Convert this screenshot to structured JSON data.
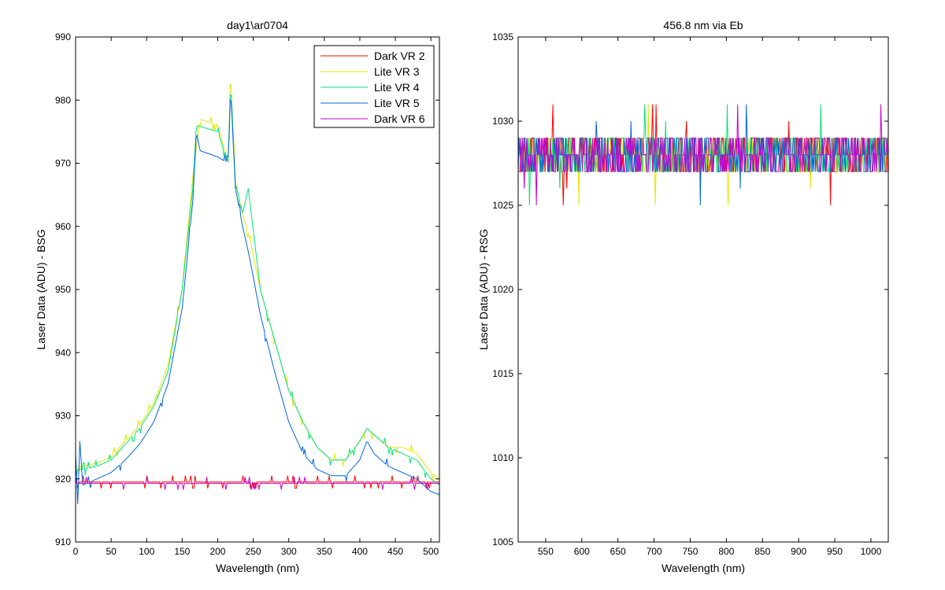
{
  "colors": {
    "background": "#ffffff",
    "axes": "#000000",
    "dark_vr_2": "#ff0000",
    "lite_vr_3": "#e6e600",
    "lite_vr_4": "#00e673",
    "lite_vr_5": "#0066dd",
    "dark_vr_6": "#cc00cc"
  },
  "chart_data": [
    {
      "type": "line",
      "title": "day1\\ar0704",
      "xlabel": "Wavelength (nm)",
      "ylabel": "Laser Data (ADU) - BSG",
      "xlim": [
        0,
        512
      ],
      "ylim": [
        910,
        990
      ],
      "xticks": [
        0,
        50,
        100,
        150,
        200,
        250,
        300,
        350,
        400,
        450,
        500
      ],
      "yticks": [
        910,
        920,
        930,
        940,
        950,
        960,
        970,
        980,
        990
      ],
      "grid": false,
      "legend_position": "top-right",
      "legend": [
        "Dark VR 2",
        "Lite VR 3",
        "Lite VR 4",
        "Lite VR 5",
        "Dark VR 6"
      ],
      "series": [
        {
          "name": "Dark VR 2",
          "color_key": "dark_vr_2",
          "x": [
            0,
            50,
            100,
            150,
            200,
            250,
            300,
            350,
            400,
            450,
            512
          ],
          "y": [
            919.5,
            919.5,
            919.5,
            919.5,
            919.5,
            919.5,
            919.5,
            919.5,
            919.5,
            919.5,
            919.5
          ]
        },
        {
          "name": "Lite VR 3",
          "color_key": "lite_vr_3",
          "x": [
            0,
            10,
            30,
            50,
            70,
            90,
            110,
            130,
            150,
            165,
            175,
            200,
            215,
            218,
            225,
            235,
            245,
            260,
            280,
            300,
            320,
            340,
            360,
            380,
            400,
            410,
            420,
            440,
            460,
            480,
            500,
            512
          ],
          "y": [
            922,
            922,
            922.5,
            923.5,
            926,
            928.5,
            932,
            938,
            950,
            968,
            977,
            976,
            970,
            985,
            967,
            962,
            958,
            950,
            942,
            934,
            929,
            925,
            923,
            923,
            926,
            928,
            927,
            925,
            925,
            924,
            921,
            920
          ]
        },
        {
          "name": "Lite VR 4",
          "color_key": "lite_vr_4",
          "x": [
            0,
            10,
            30,
            50,
            70,
            90,
            110,
            130,
            150,
            165,
            170,
            200,
            215,
            218,
            225,
            235,
            243,
            260,
            280,
            300,
            320,
            340,
            360,
            380,
            400,
            410,
            420,
            440,
            460,
            480,
            500,
            512
          ],
          "y": [
            921.5,
            921.5,
            922,
            923,
            925.5,
            928,
            931.5,
            937,
            950,
            966,
            976,
            975,
            970,
            983,
            967,
            962,
            966,
            950,
            942,
            934,
            929,
            925,
            923,
            923,
            926,
            928,
            927,
            925,
            924,
            923,
            920,
            919
          ]
        },
        {
          "name": "Lite VR 5",
          "color_key": "lite_vr_5",
          "x": [
            0,
            3,
            6,
            10,
            30,
            50,
            70,
            90,
            110,
            130,
            150,
            165,
            170,
            175,
            200,
            215,
            218,
            225,
            235,
            245,
            260,
            280,
            300,
            320,
            340,
            360,
            380,
            400,
            410,
            420,
            440,
            460,
            480,
            500,
            512
          ],
          "y": [
            924,
            916,
            926,
            919,
            920,
            921,
            923,
            925.5,
            929,
            935,
            947,
            964,
            975,
            972,
            971,
            970,
            982,
            966,
            960,
            955,
            946,
            937,
            929,
            924,
            921.5,
            920.5,
            920.5,
            923,
            926,
            924,
            922,
            921,
            920,
            918,
            917.5
          ]
        },
        {
          "name": "Dark VR 6",
          "color_key": "dark_vr_6",
          "x": [
            0,
            50,
            100,
            150,
            200,
            250,
            300,
            350,
            400,
            450,
            512
          ],
          "y": [
            919.3,
            919.3,
            919.3,
            919.3,
            919.3,
            919.3,
            919.3,
            919.3,
            919.3,
            919.3,
            919.3
          ]
        }
      ]
    },
    {
      "type": "line",
      "title": "456.8 nm via Eb",
      "xlabel": "Wavelength (nm)",
      "ylabel": "Laser Data (ADU) - RSG",
      "xlim": [
        512,
        1024
      ],
      "ylim": [
        1005,
        1035
      ],
      "xticks": [
        550,
        600,
        650,
        700,
        750,
        800,
        850,
        900,
        950,
        1000
      ],
      "yticks": [
        1005,
        1010,
        1015,
        1020,
        1025,
        1030,
        1035
      ],
      "grid": false,
      "series": [
        {
          "name": "Dark VR 2",
          "color_key": "dark_vr_2",
          "x": [
            512,
            1024
          ],
          "y": [
            1028,
            1028
          ]
        },
        {
          "name": "Lite VR 3",
          "color_key": "lite_vr_3",
          "x": [
            512,
            1024
          ],
          "y": [
            1028,
            1028
          ]
        },
        {
          "name": "Lite VR 4",
          "color_key": "lite_vr_4",
          "x": [
            512,
            1024
          ],
          "y": [
            1028,
            1028
          ]
        },
        {
          "name": "Lite VR 5",
          "color_key": "lite_vr_5",
          "x": [
            512,
            1024
          ],
          "y": [
            1028,
            1028
          ]
        },
        {
          "name": "Dark VR 6",
          "color_key": "dark_vr_6",
          "x": [
            512,
            1024
          ],
          "y": [
            1028,
            1028
          ]
        }
      ]
    }
  ]
}
